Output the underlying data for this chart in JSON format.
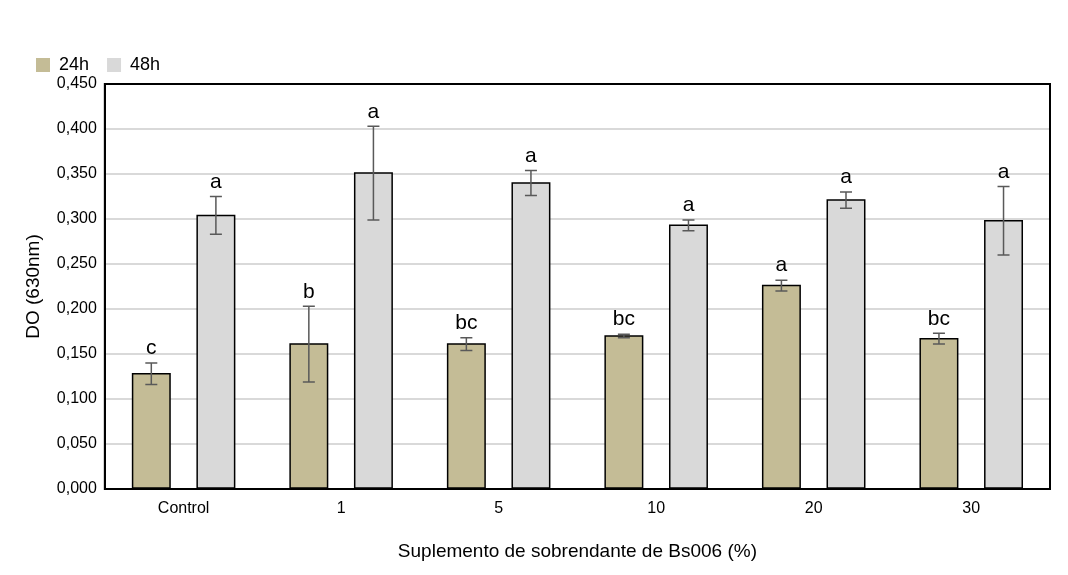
{
  "chart_data": {
    "type": "bar",
    "categories": [
      "Control",
      "1",
      "5",
      "10",
      "20",
      "30"
    ],
    "series": [
      {
        "name": "24h",
        "color": "#c4bc96",
        "values": [
          0.128,
          0.161,
          0.161,
          0.17,
          0.226,
          0.167
        ],
        "errors": [
          0.012,
          0.042,
          0.007,
          0.002,
          0.006,
          0.006
        ]
      },
      {
        "name": "48h",
        "color": "#d9d9d9",
        "values": [
          0.304,
          0.351,
          0.34,
          0.293,
          0.321,
          0.298
        ],
        "errors": [
          0.021,
          0.052,
          0.014,
          0.006,
          0.009,
          0.038
        ]
      }
    ],
    "xlabel": "Suplemento de sobrendante de Bs006 (%)",
    "ylabel": "DO (630nm)",
    "ylim": [
      0,
      0.45
    ],
    "yticks": [
      {
        "value": 0,
        "label": "0,000"
      },
      {
        "value": 0.05,
        "label": "0,050"
      },
      {
        "value": 0.1,
        "label": "0,100"
      },
      {
        "value": 0.15,
        "label": "0,150"
      },
      {
        "value": 0.2,
        "label": "0,200"
      },
      {
        "value": 0.25,
        "label": "0,250"
      },
      {
        "value": 0.3,
        "label": "0,300"
      },
      {
        "value": 0.35,
        "label": "0,350"
      },
      {
        "value": 0.4,
        "label": "0,400"
      },
      {
        "value": 0.45,
        "label": "0,450"
      }
    ],
    "annotations": [
      "c",
      "a",
      "b",
      "a",
      "bc",
      "a",
      "bc",
      "a",
      "a",
      "a",
      "bc",
      "a"
    ],
    "grid": "y",
    "legend": "top left"
  }
}
